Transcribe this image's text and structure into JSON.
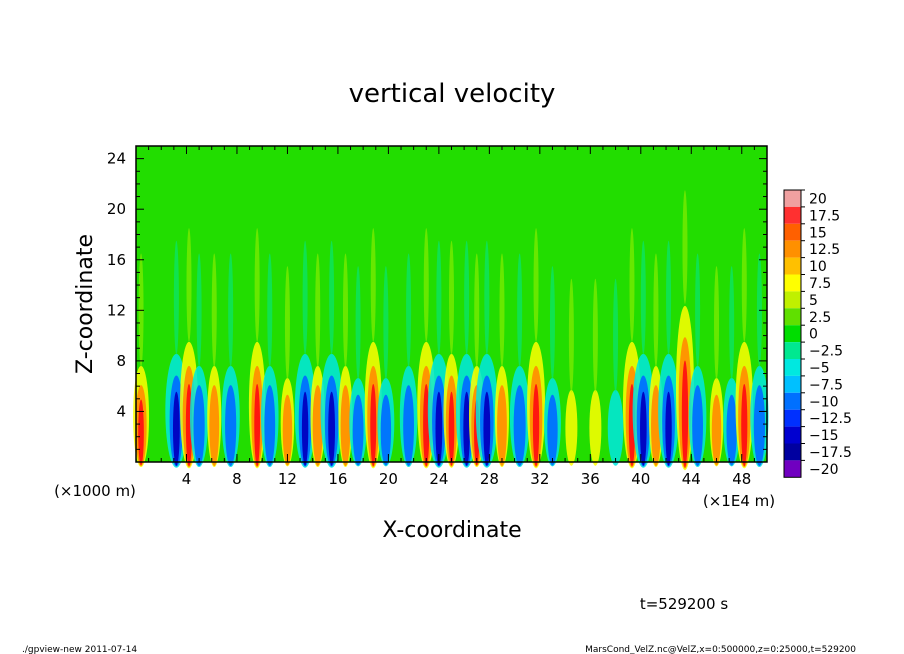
{
  "chart_data": {
    "type": "heatmap",
    "title": "vertical velocity",
    "xlabel": "X-coordinate",
    "ylabel": "Z-coordinate",
    "x_unit_left": "(×1000 m)",
    "x_unit_right": "(×1E4 m)",
    "xlim": [
      0,
      50
    ],
    "ylim": [
      0,
      25
    ],
    "x_ticks": [
      4,
      8,
      12,
      16,
      20,
      24,
      28,
      32,
      36,
      40,
      44,
      48
    ],
    "y_ticks": [
      4,
      8,
      12,
      16,
      20,
      24
    ],
    "x_tick_labels": [
      "4",
      "8",
      "12",
      "16",
      "20",
      "24",
      "28",
      "32",
      "36",
      "40",
      "44",
      "48"
    ],
    "y_tick_labels": [
      "4",
      "8",
      "12",
      "16",
      "20",
      "24"
    ],
    "colorbar": {
      "labels": [
        "20",
        "17.5",
        "15",
        "12.5",
        "10",
        "7.5",
        "5",
        "2.5",
        "0",
        "−2.5",
        "−5",
        "−7.5",
        "−10",
        "−12.5",
        "−15",
        "−17.5",
        "−20"
      ],
      "colors": [
        "#f0a0a0",
        "#ff3030",
        "#ff6000",
        "#ff9000",
        "#ffc000",
        "#ffff00",
        "#c0f000",
        "#60e000",
        "#00dd00",
        "#00e890",
        "#00e8e0",
        "#00c0ff",
        "#0070ff",
        "#0030ff",
        "#0000d0",
        "#0000a0",
        "#7000c0"
      ]
    },
    "features": [
      {
        "x": 0.4,
        "sign": 1,
        "amp": 0.8,
        "top": 8
      },
      {
        "x": 3.2,
        "sign": -1,
        "amp": 0.9,
        "top": 9
      },
      {
        "x": 4.2,
        "sign": 1,
        "amp": 1.0,
        "top": 10
      },
      {
        "x": 5.0,
        "sign": -1,
        "amp": 0.6,
        "top": 8
      },
      {
        "x": 6.2,
        "sign": 1,
        "amp": 0.6,
        "top": 8
      },
      {
        "x": 7.5,
        "sign": -1,
        "amp": 0.6,
        "top": 8
      },
      {
        "x": 9.6,
        "sign": 1,
        "amp": 0.85,
        "top": 10
      },
      {
        "x": 10.6,
        "sign": -1,
        "amp": 0.55,
        "top": 8
      },
      {
        "x": 12.0,
        "sign": 1,
        "amp": 0.55,
        "top": 7
      },
      {
        "x": 13.4,
        "sign": -1,
        "amp": 0.8,
        "top": 9
      },
      {
        "x": 14.4,
        "sign": 1,
        "amp": 0.65,
        "top": 8
      },
      {
        "x": 15.5,
        "sign": -1,
        "amp": 0.9,
        "top": 9
      },
      {
        "x": 16.6,
        "sign": 1,
        "amp": 0.6,
        "top": 8
      },
      {
        "x": 17.6,
        "sign": -1,
        "amp": 0.55,
        "top": 7
      },
      {
        "x": 18.8,
        "sign": 1,
        "amp": 0.9,
        "top": 10
      },
      {
        "x": 19.8,
        "sign": -1,
        "amp": 0.5,
        "top": 7
      },
      {
        "x": 21.6,
        "sign": -1,
        "amp": 0.55,
        "top": 8
      },
      {
        "x": 23.0,
        "sign": 1,
        "amp": 1.0,
        "top": 10
      },
      {
        "x": 24.0,
        "sign": -1,
        "amp": 0.9,
        "top": 9
      },
      {
        "x": 25.0,
        "sign": 1,
        "amp": 0.8,
        "top": 9
      },
      {
        "x": 26.2,
        "sign": -1,
        "amp": 0.85,
        "top": 9
      },
      {
        "x": 27.0,
        "sign": 1,
        "amp": 0.75,
        "top": 8
      },
      {
        "x": 27.8,
        "sign": -1,
        "amp": 0.9,
        "top": 9
      },
      {
        "x": 29.0,
        "sign": 1,
        "amp": 0.6,
        "top": 8
      },
      {
        "x": 30.4,
        "sign": -1,
        "amp": 0.7,
        "top": 8
      },
      {
        "x": 31.7,
        "sign": 1,
        "amp": 1.0,
        "top": 10
      },
      {
        "x": 33.0,
        "sign": -1,
        "amp": 0.5,
        "top": 7
      },
      {
        "x": 34.5,
        "sign": 1,
        "amp": 0.4,
        "top": 6
      },
      {
        "x": 36.4,
        "sign": 1,
        "amp": 0.4,
        "top": 6
      },
      {
        "x": 38.0,
        "sign": -1,
        "amp": 0.4,
        "top": 6
      },
      {
        "x": 39.3,
        "sign": 1,
        "amp": 1.0,
        "top": 10
      },
      {
        "x": 40.2,
        "sign": -1,
        "amp": 0.85,
        "top": 9
      },
      {
        "x": 41.2,
        "sign": 1,
        "amp": 0.6,
        "top": 8
      },
      {
        "x": 42.2,
        "sign": -1,
        "amp": 0.8,
        "top": 9
      },
      {
        "x": 43.5,
        "sign": 1,
        "amp": 1.0,
        "top": 13
      },
      {
        "x": 44.5,
        "sign": -1,
        "amp": 0.55,
        "top": 8
      },
      {
        "x": 46.0,
        "sign": 1,
        "amp": 0.55,
        "top": 7
      },
      {
        "x": 47.2,
        "sign": -1,
        "amp": 0.5,
        "top": 7
      },
      {
        "x": 48.2,
        "sign": 1,
        "amp": 0.95,
        "top": 10
      },
      {
        "x": 49.4,
        "sign": -1,
        "amp": 0.6,
        "top": 8
      }
    ]
  },
  "time_label": "t=529200 s",
  "footer_left": "./gpview-new   2011-07-14",
  "footer_right": "MarsCond_VelZ.nc@VelZ,x=0:500000,z=0:25000,t=529200"
}
